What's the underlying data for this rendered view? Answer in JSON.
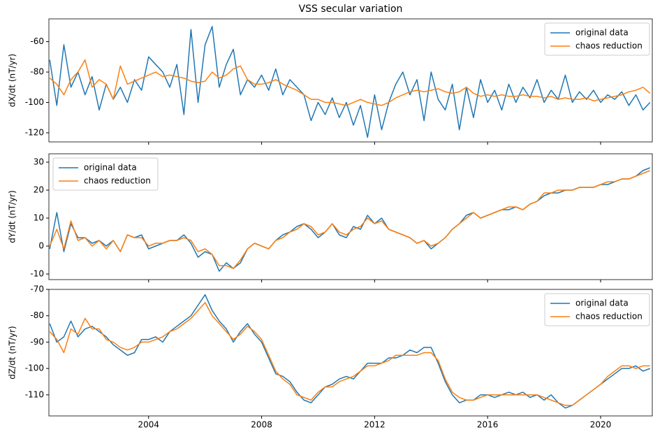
{
  "chart_data": [
    {
      "type": "line",
      "title": "VSS secular variation",
      "ylabel": "dX/dt (nT/yr)",
      "legend": "upper right",
      "x": [
        2000.5,
        2000.75,
        2001,
        2001.25,
        2001.5,
        2001.75,
        2002,
        2002.25,
        2002.5,
        2002.75,
        2003,
        2003.25,
        2003.5,
        2003.75,
        2004,
        2004.25,
        2004.5,
        2004.75,
        2005,
        2005.25,
        2005.5,
        2005.75,
        2006,
        2006.25,
        2006.5,
        2006.75,
        2007,
        2007.25,
        2007.5,
        2007.75,
        2008,
        2008.25,
        2008.5,
        2008.75,
        2009,
        2009.25,
        2009.5,
        2009.75,
        2010,
        2010.25,
        2010.5,
        2010.75,
        2011,
        2011.25,
        2011.5,
        2011.75,
        2012,
        2012.25,
        2012.5,
        2012.75,
        2013,
        2013.25,
        2013.5,
        2013.75,
        2014,
        2014.25,
        2014.5,
        2014.75,
        2015,
        2015.25,
        2015.5,
        2015.75,
        2016,
        2016.25,
        2016.5,
        2016.75,
        2017,
        2017.25,
        2017.5,
        2017.75,
        2018,
        2018.25,
        2018.5,
        2018.75,
        2019,
        2019.25,
        2019.5,
        2019.75,
        2020,
        2020.25,
        2020.5,
        2020.75,
        2021,
        2021.25,
        2021.5,
        2021.75
      ],
      "xlim": [
        2000.47,
        2021.83
      ],
      "ylim": [
        -126,
        -45
      ],
      "yticks": [
        -120,
        -100,
        -80,
        -60
      ],
      "series": [
        {
          "name": "original data",
          "color": "#1f77b4",
          "values": [
            -72,
            -102,
            -62,
            -90,
            -80,
            -95,
            -83,
            -105,
            -88,
            -98,
            -90,
            -100,
            -85,
            -92,
            -70,
            -75,
            -80,
            -90,
            -75,
            -108,
            -52,
            -100,
            -62,
            -50,
            -90,
            -75,
            -65,
            -95,
            -85,
            -90,
            -82,
            -92,
            -78,
            -95,
            -85,
            -90,
            -95,
            -112,
            -100,
            -108,
            -97,
            -110,
            -100,
            -115,
            -102,
            -123,
            -95,
            -118,
            -100,
            -88,
            -80,
            -95,
            -85,
            -112,
            -80,
            -98,
            -105,
            -88,
            -118,
            -90,
            -110,
            -85,
            -100,
            -92,
            -105,
            -88,
            -100,
            -90,
            -97,
            -85,
            -100,
            -92,
            -98,
            -82,
            -100,
            -93,
            -98,
            -92,
            -100,
            -95,
            -98,
            -93,
            -102,
            -95,
            -105,
            -100
          ]
        },
        {
          "name": "chaos reduction",
          "color": "#ff7f0e",
          "values": [
            -84,
            -88,
            -95,
            -85,
            -80,
            -72,
            -90,
            -85,
            -88,
            -98,
            -76,
            -88,
            -86,
            -84,
            -82,
            -80,
            -83,
            -82,
            -83,
            -84,
            -86,
            -87,
            -86,
            -80,
            -84,
            -82,
            -78,
            -76,
            -85,
            -88,
            -88,
            -87,
            -85,
            -88,
            -90,
            -92,
            -95,
            -98,
            -98,
            -100,
            -100,
            -101,
            -102,
            -100,
            -98,
            -100,
            -101,
            -102,
            -100,
            -97,
            -95,
            -93,
            -92,
            -93,
            -92,
            -91,
            -93,
            -94,
            -93,
            -90,
            -94,
            -96,
            -95,
            -96,
            -95,
            -96,
            -96,
            -95,
            -96,
            -96,
            -97,
            -96,
            -98,
            -97,
            -98,
            -98,
            -97,
            -99,
            -98,
            -97,
            -96,
            -95,
            -93,
            -92,
            -90,
            -94
          ]
        }
      ]
    },
    {
      "type": "line",
      "ylabel": "dY/dt (nT/yr)",
      "legend": "upper left",
      "x": [
        2000.5,
        2000.75,
        2001,
        2001.25,
        2001.5,
        2001.75,
        2002,
        2002.25,
        2002.5,
        2002.75,
        2003,
        2003.25,
        2003.5,
        2003.75,
        2004,
        2004.25,
        2004.5,
        2004.75,
        2005,
        2005.25,
        2005.5,
        2005.75,
        2006,
        2006.25,
        2006.5,
        2006.75,
        2007,
        2007.25,
        2007.5,
        2007.75,
        2008,
        2008.25,
        2008.5,
        2008.75,
        2009,
        2009.25,
        2009.5,
        2009.75,
        2010,
        2010.25,
        2010.5,
        2010.75,
        2011,
        2011.25,
        2011.5,
        2011.75,
        2012,
        2012.25,
        2012.5,
        2012.75,
        2013,
        2013.25,
        2013.5,
        2013.75,
        2014,
        2014.25,
        2014.5,
        2014.75,
        2015,
        2015.25,
        2015.5,
        2015.75,
        2016,
        2016.25,
        2016.5,
        2016.75,
        2017,
        2017.25,
        2017.5,
        2017.75,
        2018,
        2018.25,
        2018.5,
        2018.75,
        2019,
        2019.25,
        2019.5,
        2019.75,
        2020,
        2020.25,
        2020.5,
        2020.75,
        2021,
        2021.25,
        2021.5,
        2021.75
      ],
      "xlim": [
        2000.47,
        2021.83
      ],
      "ylim": [
        -12,
        33
      ],
      "yticks": [
        -10,
        0,
        10,
        20,
        30
      ],
      "series": [
        {
          "name": "original data",
          "color": "#1f77b4",
          "values": [
            -1,
            12,
            -2,
            8,
            3,
            3,
            1,
            2,
            0,
            2,
            -2,
            4,
            3,
            4,
            -1,
            0,
            1,
            2,
            2,
            4,
            1,
            -4,
            -2,
            -3,
            -9,
            -6,
            -8,
            -6,
            -1,
            1,
            0,
            -1,
            2,
            4,
            5,
            7,
            8,
            6,
            3,
            5,
            8,
            4,
            3,
            7,
            6,
            11,
            8,
            10,
            6,
            5,
            4,
            3,
            1,
            2,
            -1,
            1,
            3,
            6,
            8,
            11,
            12,
            10,
            11,
            12,
            13,
            13,
            14,
            13,
            15,
            16,
            18,
            19,
            19,
            20,
            20,
            21,
            21,
            21,
            22,
            22,
            23,
            24,
            24,
            25,
            27,
            28
          ]
        },
        {
          "name": "chaos reduction",
          "color": "#ff7f0e",
          "values": [
            0,
            6,
            -1,
            9,
            2,
            3,
            0,
            2,
            -1,
            2,
            -2,
            4,
            3,
            3,
            0,
            1,
            1,
            2,
            2,
            3,
            2,
            -2,
            -1,
            -3,
            -7,
            -7,
            -8,
            -5,
            -1,
            1,
            0,
            -1,
            2,
            3,
            5,
            6,
            8,
            7,
            4,
            5,
            8,
            5,
            4,
            6,
            7,
            10,
            8,
            9,
            6,
            5,
            4,
            3,
            1,
            2,
            0,
            1,
            3,
            6,
            8,
            10,
            12,
            10,
            11,
            12,
            13,
            14,
            14,
            13,
            15,
            16,
            19,
            19,
            20,
            20,
            20,
            21,
            21,
            21,
            22,
            23,
            23,
            24,
            24,
            25,
            26,
            27
          ]
        }
      ]
    },
    {
      "type": "line",
      "ylabel": "dZ/dt (nT/yr)",
      "legend": "upper right",
      "x": [
        2000.5,
        2000.75,
        2001,
        2001.25,
        2001.5,
        2001.75,
        2002,
        2002.25,
        2002.5,
        2002.75,
        2003,
        2003.25,
        2003.5,
        2003.75,
        2004,
        2004.25,
        2004.5,
        2004.75,
        2005,
        2005.25,
        2005.5,
        2005.75,
        2006,
        2006.25,
        2006.5,
        2006.75,
        2007,
        2007.25,
        2007.5,
        2007.75,
        2008,
        2008.25,
        2008.5,
        2008.75,
        2009,
        2009.25,
        2009.5,
        2009.75,
        2010,
        2010.25,
        2010.5,
        2010.75,
        2011,
        2011.25,
        2011.5,
        2011.75,
        2012,
        2012.25,
        2012.5,
        2012.75,
        2013,
        2013.25,
        2013.5,
        2013.75,
        2014,
        2014.25,
        2014.5,
        2014.75,
        2015,
        2015.25,
        2015.5,
        2015.75,
        2016,
        2016.25,
        2016.5,
        2016.75,
        2017,
        2017.25,
        2017.5,
        2017.75,
        2018,
        2018.25,
        2018.5,
        2018.75,
        2019,
        2019.25,
        2019.5,
        2019.75,
        2020,
        2020.25,
        2020.5,
        2020.75,
        2021,
        2021.25,
        2021.5,
        2021.75
      ],
      "xlim": [
        2000.47,
        2021.83
      ],
      "xticks": [
        2004,
        2008,
        2012,
        2016,
        2020
      ],
      "ylim": [
        -118,
        -70
      ],
      "yticks": [
        -110,
        -100,
        -90,
        -80,
        -70
      ],
      "series": [
        {
          "name": "original data",
          "color": "#1f77b4",
          "values": [
            -83,
            -90,
            -88,
            -82,
            -88,
            -85,
            -84,
            -86,
            -88,
            -91,
            -93,
            -95,
            -94,
            -89,
            -89,
            -88,
            -90,
            -86,
            -84,
            -82,
            -80,
            -76,
            -72,
            -78,
            -82,
            -85,
            -90,
            -86,
            -83,
            -87,
            -90,
            -96,
            -102,
            -103,
            -105,
            -109,
            -112,
            -113,
            -110,
            -107,
            -106,
            -104,
            -103,
            -104,
            -101,
            -98,
            -98,
            -98,
            -96,
            -96,
            -95,
            -93,
            -94,
            -92,
            -92,
            -98,
            -105,
            -110,
            -113,
            -112,
            -112,
            -110,
            -110,
            -111,
            -110,
            -109,
            -110,
            -109,
            -111,
            -110,
            -112,
            -110,
            -113,
            -115,
            -114,
            -112,
            -110,
            -108,
            -106,
            -104,
            -102,
            -100,
            -100,
            -99,
            -101,
            -100
          ]
        },
        {
          "name": "chaos reduction",
          "color": "#ff7f0e",
          "values": [
            -86,
            -89,
            -94,
            -85,
            -87,
            -81,
            -85,
            -85,
            -89,
            -90,
            -92,
            -93,
            -92,
            -90,
            -90,
            -89,
            -88,
            -86,
            -85,
            -83,
            -81,
            -78,
            -75,
            -80,
            -83,
            -86,
            -89,
            -87,
            -84,
            -86,
            -89,
            -95,
            -101,
            -104,
            -106,
            -110,
            -111,
            -112,
            -109,
            -107,
            -107,
            -105,
            -104,
            -103,
            -101,
            -99,
            -99,
            -98,
            -97,
            -95,
            -95,
            -95,
            -95,
            -94,
            -94,
            -97,
            -104,
            -109,
            -111,
            -112,
            -112,
            -111,
            -110,
            -110,
            -110,
            -110,
            -110,
            -110,
            -110,
            -110,
            -111,
            -112,
            -113,
            -114,
            -114,
            -112,
            -110,
            -108,
            -106,
            -103,
            -101,
            -99,
            -99,
            -100,
            -99,
            -99
          ]
        }
      ]
    }
  ]
}
